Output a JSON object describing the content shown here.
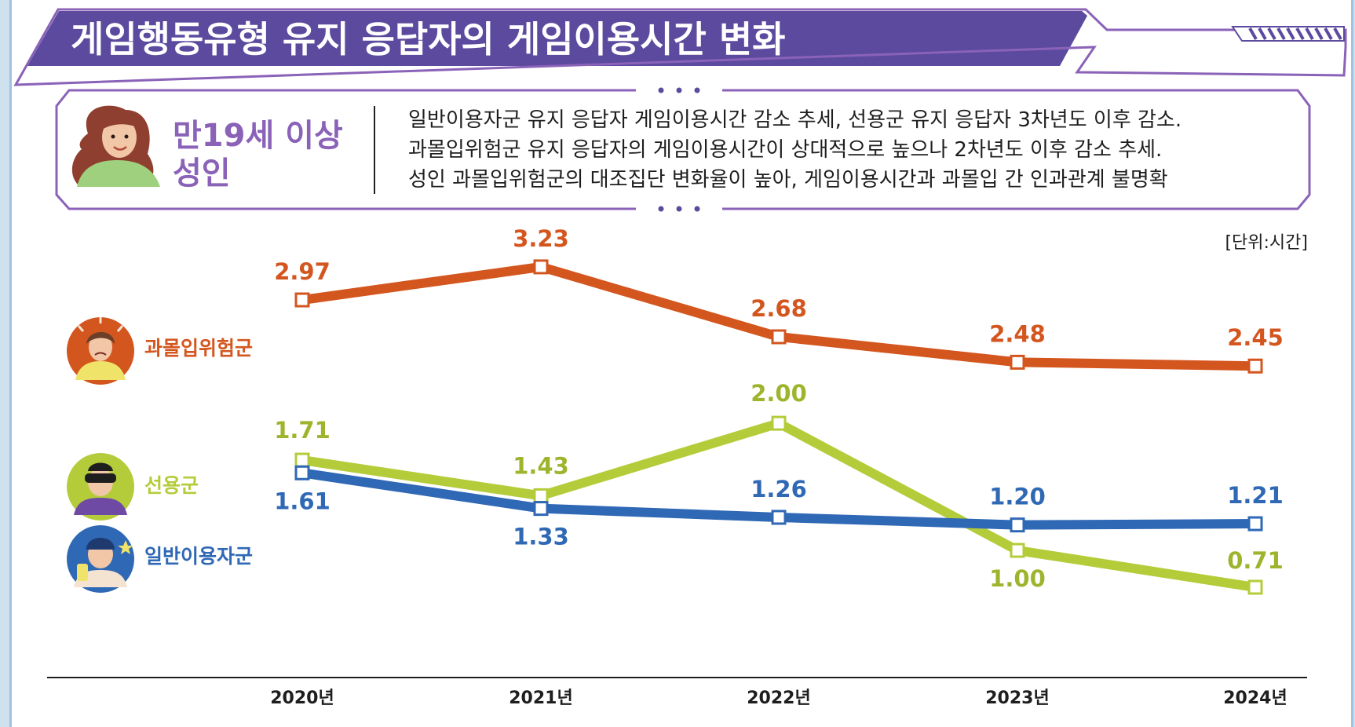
{
  "header": {
    "title": "게임행동유형 유지 응답자의 게임이용시간 변화"
  },
  "summary": {
    "group_label_line1": "만19세 이상",
    "group_label_line2": "성인",
    "notes": [
      "일반이용자군 유지 응답자 게임이용시간 감소 추세, 선용군 유지 응답자 3차년도 이후 감소.",
      "과몰입위험군 유지 응답자의 게임이용시간이 상대적으로 높으나 2차년도 이후 감소 추세.",
      "성인 과몰입위험군의 대조집단 변화율이 높아, 게임이용시간과 과몰입 간 인과관계 불명확"
    ]
  },
  "colors": {
    "header_purple": "#5b4a9e",
    "accent_purple": "#8a62b8",
    "series_orange": "#d4561f",
    "series_green": "#b5cc3a",
    "series_blue": "#2f68b5",
    "value_green": "#9db52d"
  },
  "chart_data": {
    "type": "line",
    "unit_label": "[단위:시간]",
    "categories": [
      "2020년",
      "2021년",
      "2022년",
      "2023년",
      "2024년"
    ],
    "ylim": [
      0,
      3.6
    ],
    "grid": false,
    "legend_position": "left",
    "series": [
      {
        "name": "과몰입위험군",
        "color": "#d4561f",
        "values": [
          2.97,
          3.23,
          2.68,
          2.48,
          2.45
        ],
        "labels": [
          "2.97",
          "3.23",
          "2.68",
          "2.48",
          "2.45"
        ]
      },
      {
        "name": "선용군",
        "color": "#b5cc3a",
        "values": [
          1.71,
          1.43,
          2.0,
          1.0,
          0.71
        ],
        "labels": [
          "1.71",
          "1.43",
          "2.00",
          "1.00",
          "0.71"
        ]
      },
      {
        "name": "일반이용자군",
        "color": "#2f68b5",
        "values": [
          1.61,
          1.33,
          1.26,
          1.2,
          1.21
        ],
        "labels": [
          "1.61",
          "1.33",
          "1.26",
          "1.20",
          "1.21"
        ]
      }
    ]
  }
}
